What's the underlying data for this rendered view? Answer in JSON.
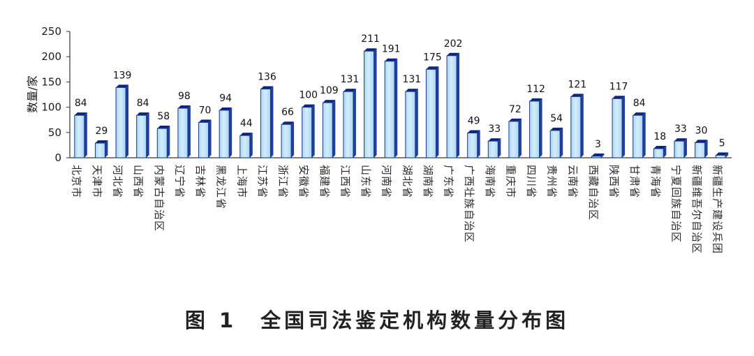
{
  "chart_data": {
    "type": "bar",
    "title": "",
    "xlabel": "",
    "ylabel": "数量/家",
    "ylim": [
      0,
      250
    ],
    "yticks": [
      "0",
      "50",
      "100",
      "150",
      "200",
      "250"
    ],
    "grid": false,
    "categories": [
      "北京市",
      "天津市",
      "河北省",
      "山西省",
      "内蒙古自治区",
      "辽宁省",
      "吉林省",
      "黑龙江省",
      "上海市",
      "江苏省",
      "浙江省",
      "安徽省",
      "福建省",
      "江西省",
      "山东省",
      "河南省",
      "湖北省",
      "湖南省",
      "广东省",
      "广西壮族自治区",
      "海南省",
      "重庆市",
      "四川省",
      "贵州省",
      "云南省",
      "西藏自治区",
      "陕西省",
      "甘肃省",
      "青海省",
      "宁夏回族自治区",
      "新疆维吾尔自治区",
      "新疆生产建设兵团"
    ],
    "values": [
      84,
      29,
      139,
      84,
      58,
      98,
      70,
      94,
      44,
      136,
      66,
      100,
      109,
      131,
      211,
      191,
      131,
      175,
      202,
      49,
      33,
      72,
      112,
      54,
      121,
      3,
      117,
      84,
      18,
      33,
      30,
      5
    ],
    "colors": {
      "front": "#a9d7f5",
      "front_light": "#d4ecfb",
      "side": "#1f3f9e",
      "top": "#0d2580",
      "edge": "#19368f"
    }
  },
  "caption": "图 1　全国司法鉴定机构数量分布图"
}
